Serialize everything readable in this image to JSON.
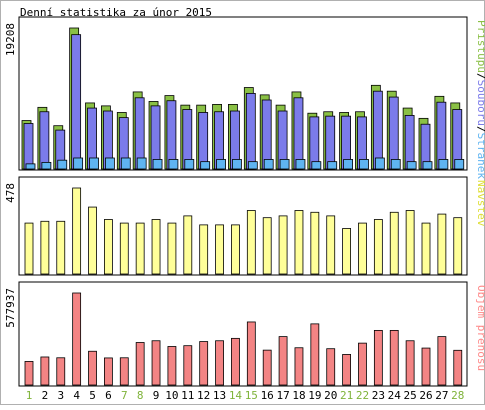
{
  "chart_data": [
    {
      "type": "bar",
      "title": "Denní statistika za únor 2015",
      "categories": [
        "1",
        "2",
        "3",
        "4",
        "5",
        "6",
        "7",
        "8",
        "9",
        "10",
        "11",
        "12",
        "13",
        "14",
        "15",
        "16",
        "17",
        "18",
        "19",
        "20",
        "21",
        "22",
        "23",
        "24",
        "25",
        "26",
        "27",
        "28"
      ],
      "weekend_days": [
        "1",
        "7",
        "8",
        "14",
        "15",
        "21",
        "22",
        "28"
      ],
      "ymax_label": "19208",
      "ylim": [
        0,
        19208
      ],
      "legend": [
        "Stránek",
        "Souborů",
        "Přístupů"
      ],
      "legend_colors": [
        "#5fb4f1",
        "#7b7bea",
        "#8ac045"
      ],
      "series": [
        {
          "name": "Přístupů",
          "color": "#8ac045",
          "values": [
            6600,
            8400,
            5900,
            19208,
            9000,
            8600,
            7700,
            10500,
            9200,
            10000,
            8700,
            8700,
            8800,
            8800,
            11100,
            10100,
            8700,
            10500,
            7600,
            7800,
            7700,
            7800,
            11400,
            10600,
            8300,
            6900,
            9900,
            9000
          ]
        },
        {
          "name": "Souborů",
          "color": "#7b7bea",
          "values": [
            6200,
            7800,
            5300,
            18300,
            8300,
            7900,
            7000,
            9700,
            8600,
            9300,
            8100,
            7700,
            7800,
            7900,
            10300,
            9400,
            7900,
            9700,
            7100,
            7200,
            7200,
            7100,
            10600,
            9800,
            7300,
            6100,
            9100,
            8100
          ]
        },
        {
          "name": "Stránek",
          "color": "#5fb4f1",
          "values": [
            700,
            900,
            1200,
            1500,
            1500,
            1500,
            1500,
            1500,
            1300,
            1300,
            1300,
            1000,
            1300,
            1300,
            1000,
            1300,
            1300,
            1300,
            1000,
            1000,
            1300,
            1300,
            1500,
            1300,
            1000,
            1000,
            1300,
            1300
          ]
        }
      ]
    },
    {
      "type": "bar",
      "ymax_label": "478",
      "ylim": [
        0,
        478
      ],
      "legend": [
        "Návštěv"
      ],
      "legend_colors": [
        "#dede33"
      ],
      "series": [
        {
          "name": "Návštěv",
          "color": "#ffff99",
          "values": [
            283,
            293,
            293,
            478,
            372,
            303,
            283,
            283,
            303,
            283,
            323,
            273,
            273,
            273,
            353,
            313,
            323,
            353,
            343,
            323,
            253,
            283,
            303,
            343,
            353,
            283,
            333,
            313
          ]
        }
      ]
    },
    {
      "type": "bar",
      "ymax_label": "577937",
      "ylim": [
        0,
        577937
      ],
      "legend": [
        "Objem přenosů"
      ],
      "legend_colors": [
        "#ff8888"
      ],
      "series": [
        {
          "name": "Objem přenosů",
          "color": "#f38484",
          "values": [
            148000,
            176000,
            171000,
            577937,
            212000,
            170000,
            171000,
            267000,
            278000,
            242000,
            247000,
            273000,
            278000,
            293000,
            396000,
            219000,
            304000,
            234000,
            384000,
            228000,
            192000,
            263000,
            343000,
            343000,
            278000,
            232000,
            304000,
            218000
          ]
        }
      ]
    }
  ]
}
